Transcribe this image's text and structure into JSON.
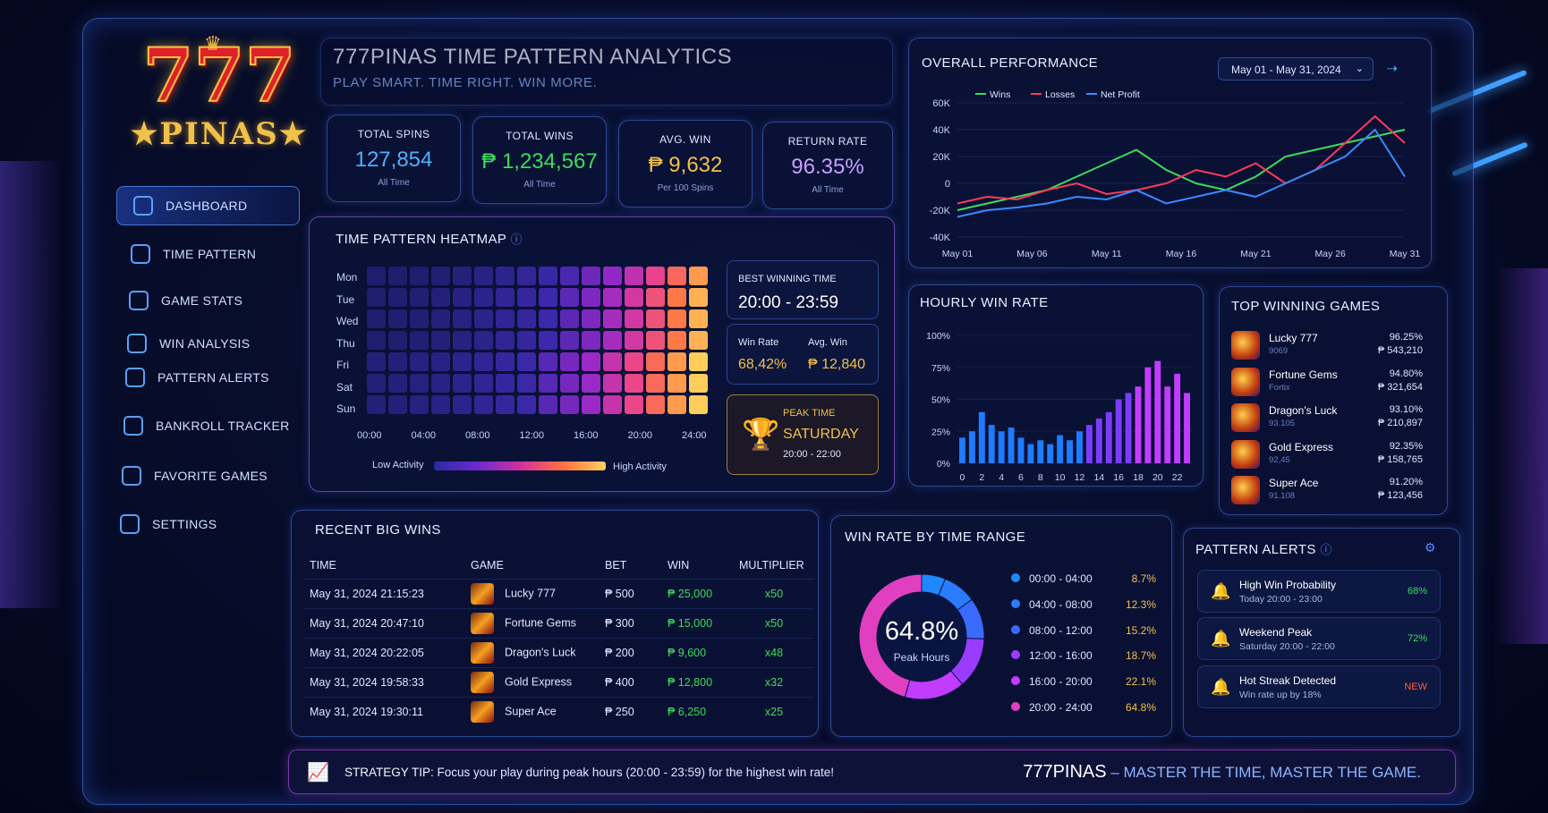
{
  "brand": {
    "logo_num": "777",
    "logo_word": "PINAS"
  },
  "colors": {
    "accent": "#3fa0ff",
    "gold": "#f1c14a",
    "green": "#3ddc5a",
    "pink": "#ff3a7a",
    "purple": "#b03cff"
  },
  "sidebar": {
    "items": [
      {
        "label": "DASHBOARD",
        "icon": "dashboard-icon",
        "active": true
      },
      {
        "label": "TIME PATTERN",
        "icon": "clock-icon"
      },
      {
        "label": "GAME STATS",
        "icon": "stats-icon"
      },
      {
        "label": "WIN ANALYSIS",
        "icon": "analysis-icon"
      },
      {
        "label": "PATTERN ALERTS",
        "icon": "alert-icon"
      },
      {
        "label": "BANKROLL TRACKER",
        "icon": "wallet-icon"
      },
      {
        "label": "FAVORITE GAMES",
        "icon": "star-icon"
      },
      {
        "label": "SETTINGS",
        "icon": "gear-icon"
      }
    ]
  },
  "header": {
    "title": "777PINAS TIME PATTERN ANALYTICS",
    "subtitle": "PLAY SMART. TIME RIGHT. WIN MORE."
  },
  "kpis": [
    {
      "label": "TOTAL SPINS",
      "value": "127,854",
      "sub": "All Time",
      "color": "#4fb0ff"
    },
    {
      "label": "TOTAL WINS",
      "value": "₱ 1,234,567",
      "sub": "All Time",
      "color": "#3ddc5a"
    },
    {
      "label": "AVG. WIN",
      "value": "₱ 9,632",
      "sub": "Per 100 Spins",
      "color": "#f1c14a"
    },
    {
      "label": "RETURN RATE",
      "value": "96.35%",
      "sub": "All Time",
      "color": "#c9a0ff"
    }
  ],
  "heatmap": {
    "title": "TIME PATTERN HEATMAP",
    "days": [
      "Mon",
      "Tue",
      "Wed",
      "Thu",
      "Fri",
      "Sat",
      "Sun"
    ],
    "hours": [
      "00:00",
      "04:00",
      "08:00",
      "12:00",
      "16:00",
      "20:00",
      "24:00"
    ],
    "legend_low": "Low Activity",
    "legend_high": "High Activity",
    "best_time_label": "BEST WINNING TIME",
    "best_time_value": "20:00 - 23:59",
    "win_rate_label": "Win Rate",
    "win_rate_value": "68,42%",
    "avg_win_label": "Avg. Win",
    "avg_win_value": "₱ 12,840",
    "peak_label": "PEAK TIME",
    "peak_day": "SATURDAY",
    "peak_range": "20:00 - 22:00"
  },
  "performance": {
    "title": "OVERALL PERFORMANCE",
    "date_range": "May 01 - May 31, 2024",
    "legend": [
      "Wins",
      "Losses",
      "Net Profit"
    ],
    "y_ticks": [
      "60K",
      "40K",
      "20K",
      "0",
      "-20K",
      "-40K"
    ],
    "x_ticks": [
      "May 01",
      "May 06",
      "May 11",
      "May 16",
      "May 21",
      "May 26",
      "May 31"
    ]
  },
  "chart_data": [
    {
      "type": "line",
      "title": "OVERALL PERFORMANCE",
      "x": [
        "May 01",
        "May 03",
        "May 05",
        "May 07",
        "May 09",
        "May 11",
        "May 13",
        "May 15",
        "May 17",
        "May 19",
        "May 21",
        "May 23",
        "May 25",
        "May 27",
        "May 29",
        "May 31"
      ],
      "ylim": [
        -40000,
        60000
      ],
      "series": [
        {
          "name": "Wins",
          "color": "#3ddc5a",
          "values": [
            -20000,
            -15000,
            -10000,
            -5000,
            5000,
            15000,
            25000,
            10000,
            0,
            -5000,
            5000,
            20000,
            25000,
            30000,
            35000,
            40000
          ]
        },
        {
          "name": "Losses",
          "color": "#ff3a5a",
          "values": [
            -15000,
            -10000,
            -12000,
            -5000,
            0,
            -8000,
            -5000,
            0,
            10000,
            5000,
            15000,
            0,
            10000,
            30000,
            50000,
            30000
          ]
        },
        {
          "name": "Net Profit",
          "color": "#3a8aff",
          "values": [
            -25000,
            -20000,
            -18000,
            -15000,
            -10000,
            -12000,
            -5000,
            -15000,
            -10000,
            -5000,
            -10000,
            0,
            10000,
            20000,
            40000,
            5000
          ]
        }
      ]
    },
    {
      "type": "bar",
      "title": "HOURLY WIN RATE",
      "categories": [
        "0",
        "1",
        "2",
        "3",
        "4",
        "5",
        "6",
        "7",
        "8",
        "9",
        "10",
        "11",
        "12",
        "13",
        "14",
        "15",
        "16",
        "17",
        "18",
        "19",
        "20",
        "21",
        "22",
        "23"
      ],
      "values": [
        20,
        25,
        40,
        30,
        25,
        28,
        20,
        15,
        18,
        15,
        22,
        18,
        25,
        30,
        35,
        40,
        50,
        55,
        60,
        75,
        80,
        60,
        70,
        55
      ],
      "ylim": [
        0,
        100
      ],
      "y_ticks": [
        "100%",
        "75%",
        "50%",
        "25%",
        "0%"
      ],
      "x_ticks": [
        "0",
        "2",
        "4",
        "6",
        "8",
        "10",
        "12",
        "14",
        "16",
        "18",
        "20",
        "22"
      ]
    },
    {
      "type": "pie",
      "title": "WIN RATE BY TIME RANGE",
      "center_value": "64.8%",
      "center_label": "Peak Hours",
      "labels": [
        "00:00 - 04:00",
        "04:00 - 08:00",
        "08:00 - 12:00",
        "12:00 - 16:00",
        "16:00 - 20:00",
        "20:00 - 24:00"
      ],
      "values": [
        8.7,
        12.3,
        15.2,
        18.7,
        22.1,
        64.8
      ],
      "value_labels": [
        "8.7%",
        "12.3%",
        "15.2%",
        "18.7%",
        "22.1%",
        "64.8%"
      ],
      "colors": [
        "#1e88ff",
        "#2a7bff",
        "#3a6bff",
        "#9a3cff",
        "#c23cff",
        "#e040c0"
      ]
    }
  ],
  "top_games": {
    "title": "TOP WINNING GAMES",
    "items": [
      {
        "name": "Lucky 777",
        "sub": "9069",
        "rate": "96.25%",
        "amount": "₱ 543,210"
      },
      {
        "name": "Fortune Gems",
        "sub": "Fortix",
        "rate": "94.80%",
        "amount": "₱ 321,654"
      },
      {
        "name": "Dragon's Luck",
        "sub": "93.105",
        "rate": "93.10%",
        "amount": "₱ 210,897"
      },
      {
        "name": "Gold Express",
        "sub": "92,45",
        "rate": "92.35%",
        "amount": "₱ 158,765"
      },
      {
        "name": "Super Ace",
        "sub": "91.108",
        "rate": "91.20%",
        "amount": "₱ 123,456"
      }
    ]
  },
  "recent_wins": {
    "title": "RECENT BIG WINS",
    "columns": [
      "TIME",
      "GAME",
      "BET",
      "WIN",
      "MULTIPLIER"
    ],
    "rows": [
      {
        "time": "May 31, 2024 21:15:23",
        "game": "Lucky 777",
        "bet": "₱ 500",
        "win": "₱ 25,000",
        "mult": "x50"
      },
      {
        "time": "May 31, 2024 20:47:10",
        "game": "Fortune Gems",
        "bet": "₱ 300",
        "win": "₱ 15,000",
        "mult": "x50"
      },
      {
        "time": "May 31, 2024 20:22:05",
        "game": "Dragon's Luck",
        "bet": "₱ 200",
        "win": "₱ 9,600",
        "mult": "x48"
      },
      {
        "time": "May 31, 2024 19:58:33",
        "game": "Gold Express",
        "bet": "₱ 400",
        "win": "₱ 12,800",
        "mult": "x32"
      },
      {
        "time": "May 31, 2024 19:30:11",
        "game": "Super Ace",
        "bet": "₱ 250",
        "win": "₱ 6,250",
        "mult": "x25"
      }
    ]
  },
  "alerts": {
    "title": "PATTERN ALERTS",
    "items": [
      {
        "title": "High Win Probability",
        "sub": "Today 20:00 - 23:00",
        "badge": "68%",
        "badge_color": "#3ddc5a"
      },
      {
        "title": "Weekend Peak",
        "sub": "Saturday 20:00 - 22:00",
        "badge": "72%",
        "badge_color": "#3ddc5a"
      },
      {
        "title": "Hot Streak Detected",
        "sub": "Win rate up by 18%",
        "badge": "NEW",
        "badge_color": "#ff5a3a"
      }
    ]
  },
  "footer": {
    "tip_label": "STRATEGY TIP:",
    "tip_text": "Focus your play during peak hours (20:00 - 23:59) for the highest win rate!",
    "brand": "777PINAS",
    "slogan": "– MASTER THE TIME, MASTER THE GAME."
  }
}
